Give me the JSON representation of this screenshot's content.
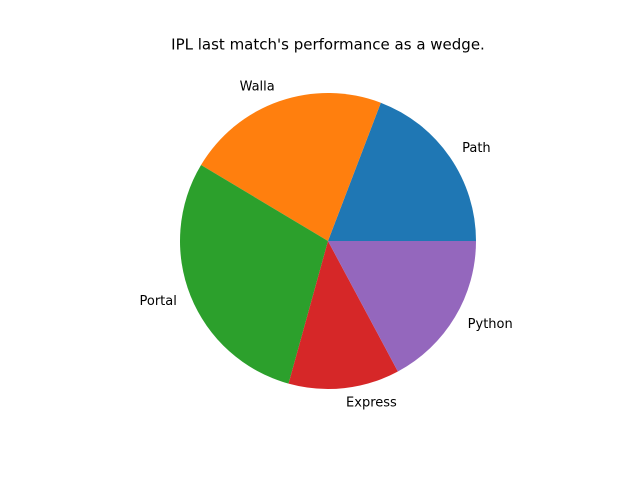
{
  "chart_data": {
    "type": "pie",
    "title": "IPL last match's performance as a wedge.",
    "categories": [
      "Path",
      "Walla",
      "Portal",
      "Express",
      "Python"
    ],
    "values": [
      19,
      22,
      29,
      12,
      17
    ],
    "colors": [
      "#1f77b4",
      "#ff7f0e",
      "#2ca02c",
      "#d62728",
      "#9467bd"
    ],
    "start_angle": 0
  }
}
